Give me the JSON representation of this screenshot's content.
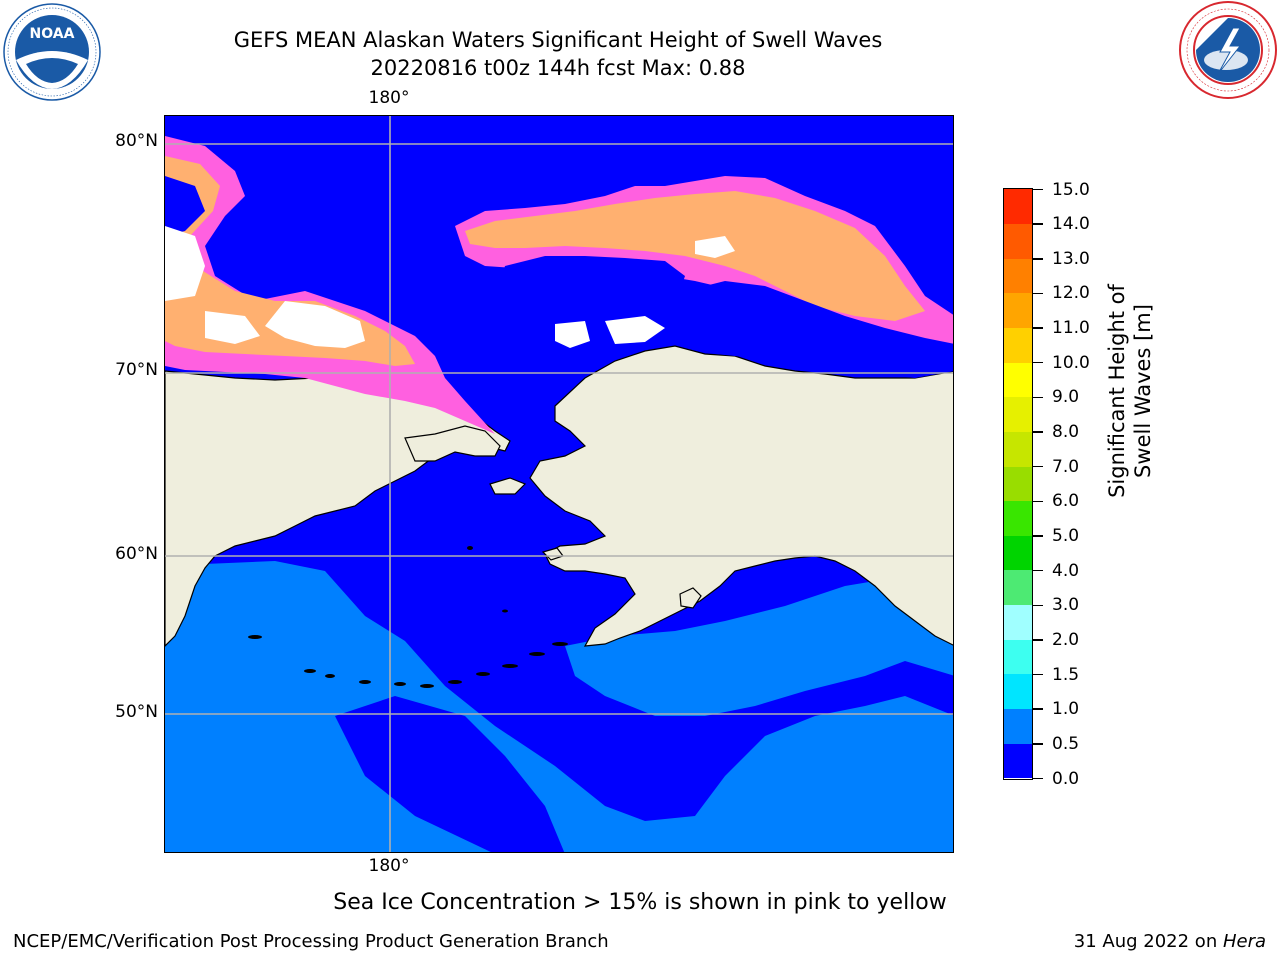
{
  "title": {
    "line1": "GEFS MEAN Alaskan Waters Significant Height of Swell Waves",
    "line2": "20220816 t00z 144h fcst   Max: 0.88"
  },
  "logos": {
    "left": {
      "name": "NOAA",
      "ring_text": "NATIONAL OCEANIC AND ATMOSPHERIC ADMINISTRATION · U.S. DEPARTMENT OF COMMERCE",
      "colors": [
        "#1a5aa6",
        "#ffffff"
      ]
    },
    "right": {
      "name": "NATIONAL WEATHER SERVICE",
      "colors": [
        "#d8282f",
        "#1a5aa6"
      ]
    }
  },
  "map": {
    "region": "Alaskan Waters",
    "projection_labels": {
      "lon_top": "180°",
      "lon_bottom": "180°",
      "lat": [
        "80°N",
        "70°N",
        "60°N",
        "50°N"
      ]
    },
    "colors": {
      "land": "#efeedd",
      "ocean_low": "#0000ff",
      "ocean_mid": "#0080ff",
      "ice_low": "#ff40ff",
      "ice_high": "#ffcc66",
      "gridline": "#b0b0b0",
      "coast": "#000000"
    }
  },
  "colorbar": {
    "title": "Significant Height of Swell Waves [m]",
    "levels": [
      "0.0",
      "0.5",
      "1.0",
      "1.5",
      "2.0",
      "3.0",
      "4.0",
      "5.0",
      "6.0",
      "7.0",
      "8.0",
      "9.0",
      "10.0",
      "11.0",
      "12.0",
      "13.0",
      "14.0",
      "15.0"
    ],
    "colors": [
      "#0000ff",
      "#0080ff",
      "#00e5ff",
      "#3dfff0",
      "#a0ffff",
      "#4dea73",
      "#00d400",
      "#39e600",
      "#99dd00",
      "#c6e600",
      "#e6f000",
      "#ffff00",
      "#ffd000",
      "#ffa500",
      "#ff8000",
      "#ff5a00",
      "#ff2a00"
    ]
  },
  "footer": {
    "note": "Sea Ice Concentration > 15% is shown in pink to yellow",
    "left": "NCEP/EMC/Verification Post Processing Product Generation Branch",
    "right_prefix": "31 Aug 2022 on ",
    "right_emph": "Hera"
  }
}
